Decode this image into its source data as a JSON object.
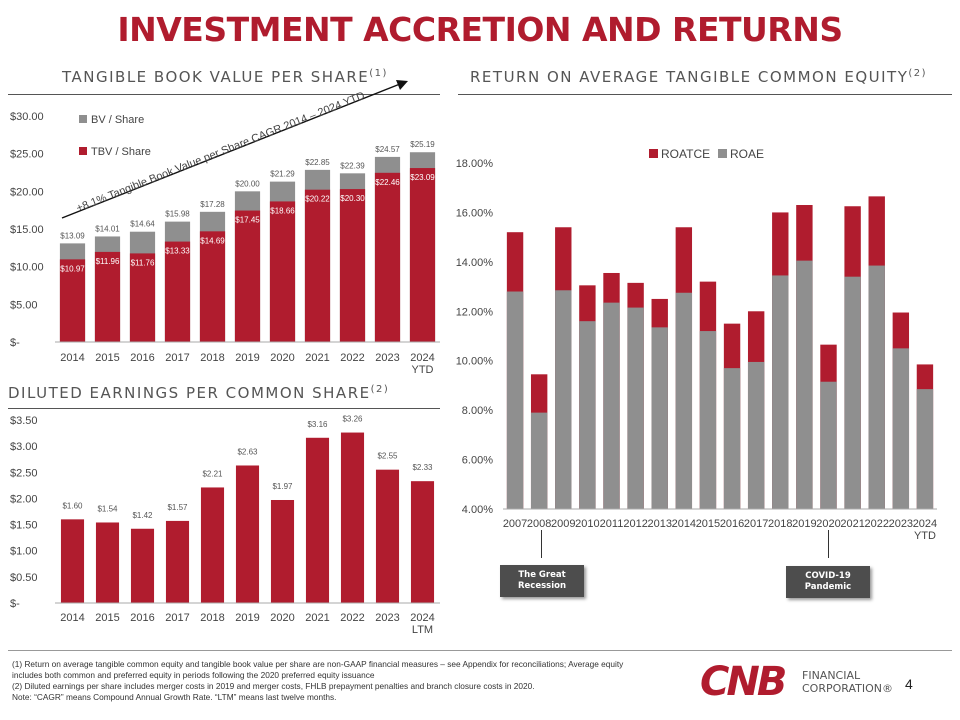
{
  "page": {
    "title": "INVESTMENT ACCRETION AND RETURNS",
    "page_number": "4",
    "brand_color": "#b01c2e",
    "gray_color": "#8f8f8f"
  },
  "sections": {
    "tbv_title": "TANGIBLE BOOK VALUE PER SHARE",
    "tbv_sup": "(1)",
    "roatce_title": "RETURN ON AVERAGE TANGIBLE COMMON EQUITY",
    "roatce_sup": "(2)",
    "eps_title": "DILUTED EARNINGS PER COMMON SHARE",
    "eps_sup": "(2)"
  },
  "callouts": {
    "recession": "The Great Recession",
    "covid": "COVID-19 Pandemic"
  },
  "footnotes": {
    "line1": "(1) Return on average tangible common equity and tangible book value per share are non-GAAP financial measures – see Appendix for reconciliations; Average equity includes both common and preferred equity in periods following the 2020 preferred equity issuance",
    "line2": "(2) Diluted earnings per share includes merger costs in 2019 and merger costs, FHLB prepayment penalties and branch closure costs in 2020.",
    "line3": "Note: “CAGR” means Compound Annual Growth Rate. “LTM” means last twelve months."
  },
  "logo": {
    "mark": "CNB",
    "line1": "FINANCIAL",
    "line2": "CORPORATION®"
  },
  "chart_data": [
    {
      "id": "tbv",
      "type": "bar",
      "title": "TANGIBLE BOOK VALUE PER SHARE(1)",
      "categories": [
        "2014",
        "2015",
        "2016",
        "2017",
        "2018",
        "2019",
        "2020",
        "2021",
        "2022",
        "2023",
        "2024\nYTD"
      ],
      "series": [
        {
          "name": "BV / Share",
          "color": "#8f8f8f",
          "values": [
            13.09,
            14.01,
            14.64,
            15.98,
            17.28,
            20.0,
            21.29,
            22.85,
            22.39,
            24.57,
            25.19
          ],
          "labels": [
            "$13.09",
            "$14.01",
            "$14.64",
            "$15.98",
            "$17.28",
            "$20.00",
            "$21.29",
            "$22.85",
            "$22.39",
            "$24.57",
            "$25.19"
          ]
        },
        {
          "name": "TBV / Share",
          "color": "#b01c2e",
          "values": [
            10.97,
            11.96,
            11.76,
            13.33,
            14.69,
            17.45,
            18.66,
            20.22,
            20.3,
            22.46,
            23.09
          ],
          "labels": [
            "$10.97",
            "$11.96",
            "$11.76",
            "$13.33",
            "$14.69",
            "$17.45",
            "$18.66",
            "$20.22",
            "$20.30",
            "$22.46",
            "$23.09"
          ]
        }
      ],
      "yticks": [
        "$30.00",
        "$25.00",
        "$20.00",
        "$15.00",
        "$10.00",
        "$5.00",
        "$-"
      ],
      "ylim": [
        0,
        30
      ],
      "annotation": "+8.1% Tangible Book Value per Share CAGR 2014 – 2024 YTD"
    },
    {
      "id": "eps",
      "type": "bar",
      "title": "DILUTED EARNINGS PER COMMON SHARE(2)",
      "categories": [
        "2014",
        "2015",
        "2016",
        "2017",
        "2018",
        "2019",
        "2020",
        "2021",
        "2022",
        "2023",
        "2024\nLTM"
      ],
      "values": [
        1.6,
        1.54,
        1.42,
        1.57,
        2.21,
        2.63,
        1.97,
        3.16,
        3.26,
        2.55,
        2.33
      ],
      "labels": [
        "$1.60",
        "$1.54",
        "$1.42",
        "$1.57",
        "$2.21",
        "$2.63",
        "$1.97",
        "$3.16",
        "$3.26",
        "$2.55",
        "$2.33"
      ],
      "color": "#b01c2e",
      "yticks": [
        "$3.50",
        "$3.00",
        "$2.50",
        "$2.00",
        "$1.50",
        "$1.00",
        "$0.50",
        "$-"
      ],
      "ylim": [
        0,
        3.5
      ]
    },
    {
      "id": "roatce",
      "type": "bar",
      "title": "RETURN ON AVERAGE TANGIBLE COMMON EQUITY(2)",
      "categories": [
        "2007",
        "2008",
        "2009",
        "2010",
        "2011",
        "2012",
        "2013",
        "2014",
        "2015",
        "2016",
        "2017",
        "2018",
        "2019",
        "2020",
        "2021",
        "2022",
        "2023",
        "2024\nYTD"
      ],
      "series": [
        {
          "name": "ROATCE",
          "color": "#b01c2e",
          "values": [
            15.2,
            9.45,
            15.4,
            13.05,
            13.55,
            13.15,
            12.5,
            15.4,
            13.2,
            11.5,
            12.0,
            16.0,
            16.3,
            10.65,
            16.25,
            16.65,
            11.95,
            9.85
          ]
        },
        {
          "name": "ROAE",
          "color": "#8f8f8f",
          "values": [
            12.8,
            7.9,
            12.85,
            11.6,
            12.35,
            12.15,
            11.35,
            12.75,
            11.2,
            9.7,
            9.95,
            13.45,
            14.05,
            9.15,
            13.4,
            13.85,
            10.5,
            8.85
          ]
        }
      ],
      "yticks": [
        "18.00%",
        "16.00%",
        "14.00%",
        "12.00%",
        "10.00%",
        "8.00%",
        "6.00%",
        "4.00%"
      ],
      "ylim": [
        4,
        18
      ]
    }
  ]
}
